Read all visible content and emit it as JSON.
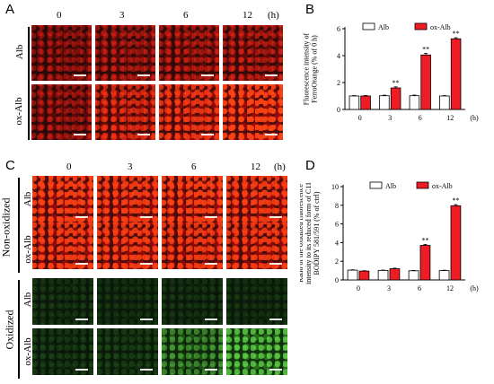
{
  "panels": {
    "A": {
      "letter": "A",
      "time_headers": [
        "0",
        "3",
        "6",
        "12"
      ],
      "unit": "(h)",
      "row_labels": [
        "Alb",
        "ox-Alb"
      ]
    },
    "C": {
      "letter": "C",
      "time_headers": [
        "0",
        "3",
        "6",
        "12"
      ],
      "unit": "(h)",
      "groups": [
        "Non-oxidized",
        "Oxidized"
      ],
      "row_labels": [
        "Alb",
        "ox-Alb",
        "Alb",
        "ox-Alb"
      ]
    }
  },
  "chart_data": [
    {
      "panel": "B",
      "type": "bar",
      "categories": [
        "0",
        "3",
        "6",
        "12"
      ],
      "series": [
        {
          "name": "Alb",
          "values": [
            1.0,
            1.02,
            1.02,
            1.0
          ],
          "errors": [
            0.03,
            0.04,
            0.05,
            0.03
          ],
          "color": "#ffffff"
        },
        {
          "name": "ox-Alb",
          "values": [
            1.0,
            1.6,
            4.05,
            5.25
          ],
          "errors": [
            0.04,
            0.08,
            0.12,
            0.08
          ],
          "color": "#ee1c24"
        }
      ],
      "significance": [
        "",
        "**",
        "**",
        "**"
      ],
      "ylabel": "Fluorescence intensity of FerroOrange (% of 0 h)",
      "xunit": "(h)",
      "ylim": [
        0,
        6
      ],
      "yticks": [
        "0",
        "2",
        "4",
        "6"
      ],
      "legend": "top"
    },
    {
      "panel": "D",
      "type": "bar",
      "categories": [
        "0",
        "3",
        "6",
        "12"
      ],
      "series": [
        {
          "name": "Alb",
          "values": [
            1.05,
            1.02,
            0.98,
            1.0
          ],
          "errors": [
            0.04,
            0.04,
            0.04,
            0.04
          ],
          "color": "#ffffff"
        },
        {
          "name": "ox-Alb",
          "values": [
            0.95,
            1.2,
            3.7,
            7.95
          ],
          "errors": [
            0.04,
            0.06,
            0.1,
            0.12
          ],
          "color": "#ee1c24"
        }
      ],
      "significance": [
        "",
        "",
        "**",
        "**"
      ],
      "ylabel": "Ratio of the oxidized fluorescence intensity to its reduced form of C11 BODIPY 581/591 (% of ctrl)",
      "xunit": "(h)",
      "ylim": [
        0,
        10
      ],
      "yticks": [
        "0",
        "2",
        "4",
        "6",
        "8",
        "10"
      ],
      "legend": "top"
    }
  ],
  "colors": {
    "red_accent": "#ee1c24",
    "fluor_red": "#e0140c",
    "fluor_green": "#4ed428"
  }
}
